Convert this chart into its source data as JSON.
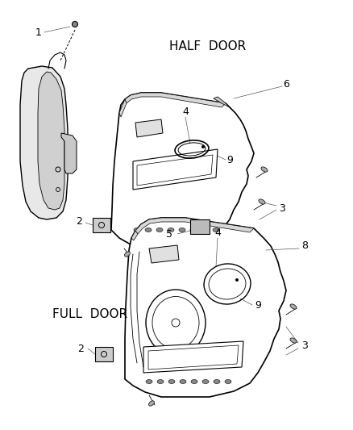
{
  "background_color": "#ffffff",
  "half_door_label": "HALF  DOOR",
  "full_door_label": "FULL  DOOR",
  "label_fontsize": 11,
  "part_number_fontsize": 9,
  "line_color": "#000000",
  "text_color": "#000000",
  "fig_width": 4.38,
  "fig_height": 5.33,
  "dpi": 100
}
